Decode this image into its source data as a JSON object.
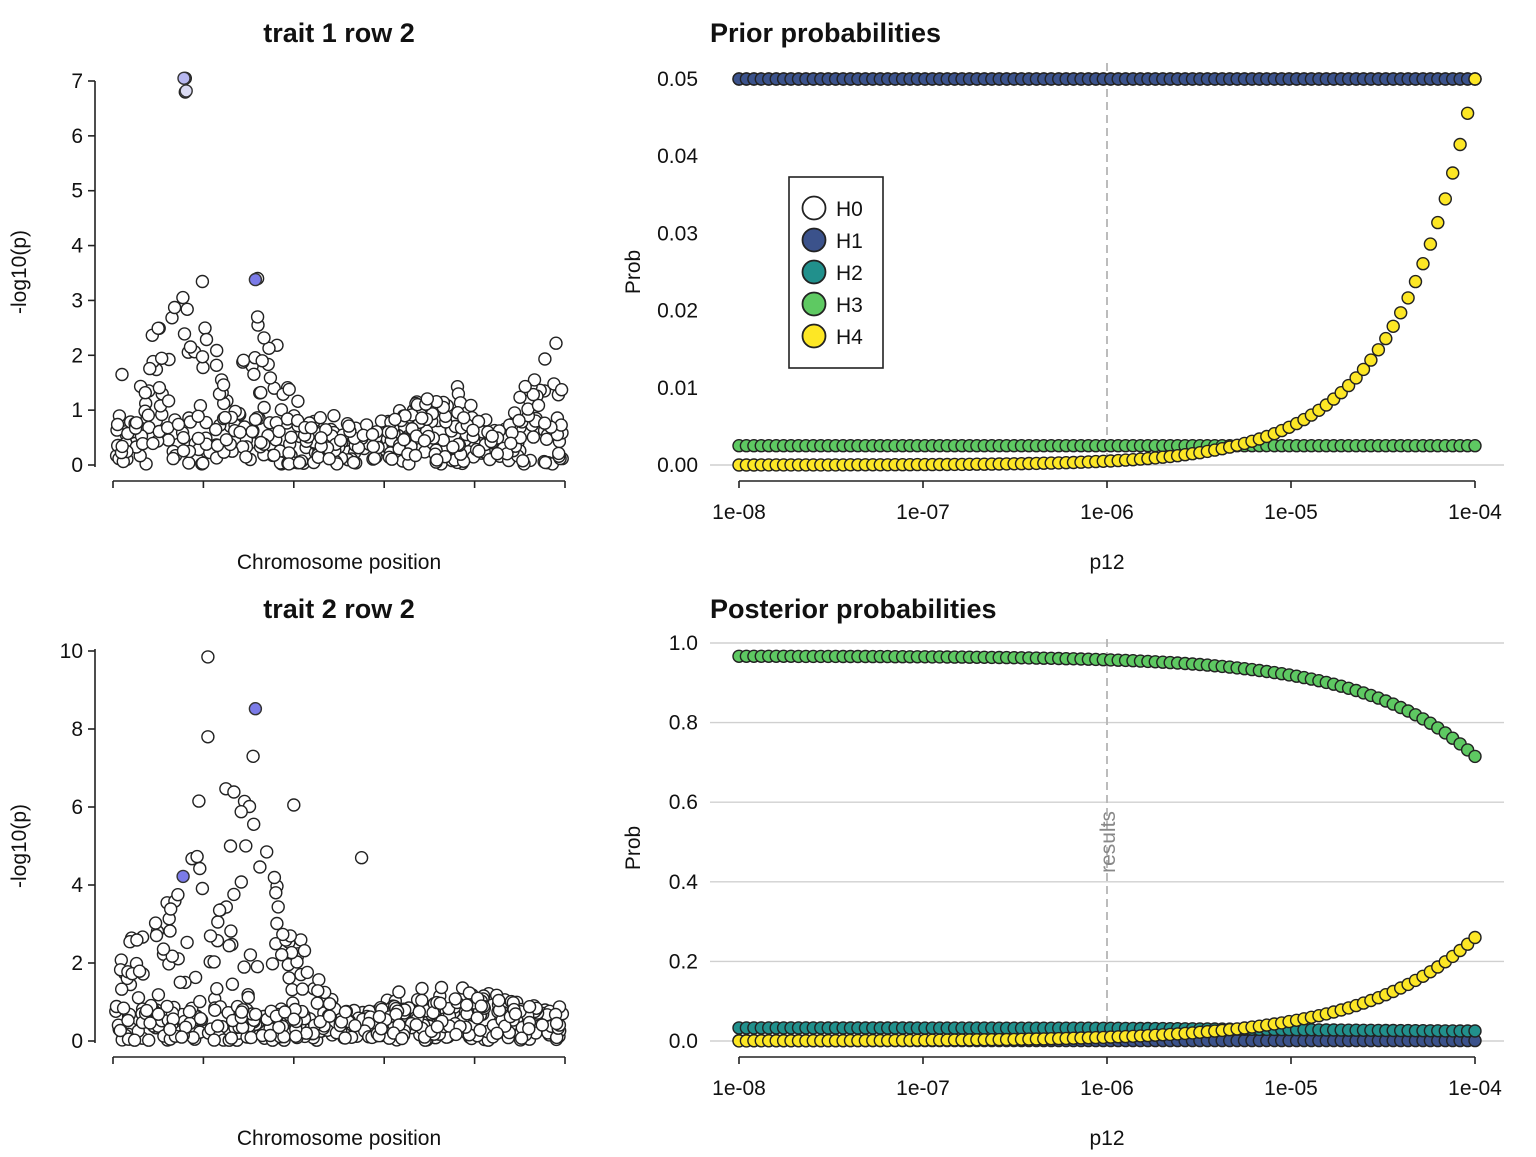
{
  "palette": {
    "H0": "#ffffff",
    "H1": "#3b528b",
    "H2": "#21908c",
    "H3": "#5ec962",
    "H4": "#fde725",
    "snp_default": "#ffffff",
    "snp_highlight": "#7b7be8",
    "snp_highlight_light": "#b8b8f0",
    "snp_highlight_pale": "#dcdcf4"
  },
  "chart_data": [
    {
      "id": "trait1",
      "type": "scatter",
      "title": "trait 1 row 2",
      "xlabel": "Chromosome position",
      "ylabel": "-log10(p)",
      "ylim": [
        0,
        7
      ],
      "yticks": [
        "0",
        "1",
        "2",
        "3",
        "4",
        "5",
        "6",
        "7"
      ],
      "x_tick_count": 6,
      "seed": 11,
      "n_background": 470,
      "peaks": [
        {
          "x": 0.16,
          "h": 3.8,
          "w": 0.09
        },
        {
          "x": 0.33,
          "h": 2.2,
          "w": 0.08
        },
        {
          "x": 0.95,
          "h": 1.8,
          "w": 0.06
        },
        {
          "x": 0.72,
          "h": 1.1,
          "w": 0.1
        }
      ],
      "points": [
        [
          0.16,
          7.05
        ],
        [
          0.16,
          6.8
        ],
        [
          0.32,
          3.4
        ],
        [
          0.32,
          2.7
        ],
        [
          0.33,
          1.9
        ],
        [
          0.02,
          1.65
        ],
        [
          0.98,
          2.22
        ]
      ],
      "highlighted": [
        {
          "x": 0.157,
          "y": 7.05,
          "color": "#b8b8f0"
        },
        {
          "x": 0.162,
          "y": 6.82,
          "color": "#dcdcf4"
        },
        {
          "x": 0.315,
          "y": 3.38,
          "color": "#7b7be8"
        }
      ]
    },
    {
      "id": "prior",
      "type": "scatter",
      "title": "Prior probabilities",
      "xlabel": "p12",
      "ylabel": "Prob",
      "x_scale": "log",
      "xlim": [
        1e-08,
        0.0001
      ],
      "xticks": [
        "1e-08",
        "1e-07",
        "1e-06",
        "1e-05",
        "1e-04"
      ],
      "ylim": [
        0,
        0.05
      ],
      "yticks": [
        "0.00",
        "0.01",
        "0.02",
        "0.03",
        "0.04",
        "0.05"
      ],
      "grid": false,
      "legend": {
        "placement": "top-left",
        "entries": [
          "H0",
          "H1",
          "H2",
          "H3",
          "H4"
        ]
      },
      "vline": {
        "x": 1e-06,
        "label": ""
      },
      "p1": 0.0001,
      "p2": 0.0001,
      "n_points": 100
    },
    {
      "id": "trait2",
      "type": "scatter",
      "title": "trait 2 row 2",
      "xlabel": "Chromosome position",
      "ylabel": "-log10(p)",
      "ylim": [
        0,
        10
      ],
      "yticks": [
        "0",
        "2",
        "4",
        "6",
        "8",
        "10"
      ],
      "x_tick_count": 6,
      "seed": 29,
      "n_background": 560,
      "peaks": [
        {
          "x": 0.25,
          "h": 6.5,
          "w": 0.16
        },
        {
          "x": 0.08,
          "h": 3.0,
          "w": 0.1
        },
        {
          "x": 0.75,
          "h": 1.0,
          "w": 0.2
        }
      ],
      "points": [
        [
          0.21,
          9.85
        ],
        [
          0.21,
          7.8
        ],
        [
          0.31,
          7.3
        ],
        [
          0.19,
          6.15
        ],
        [
          0.4,
          6.05
        ],
        [
          0.55,
          4.7
        ]
      ],
      "highlighted": [
        {
          "x": 0.315,
          "y": 8.52,
          "color": "#7b7be8"
        },
        {
          "x": 0.155,
          "y": 4.22,
          "color": "#7b7be8"
        }
      ]
    },
    {
      "id": "posterior",
      "type": "scatter",
      "title": "Posterior probabilities",
      "xlabel": "p12",
      "ylabel": "Prob",
      "x_scale": "log",
      "xlim": [
        1e-08,
        0.0001
      ],
      "xticks": [
        "1e-08",
        "1e-07",
        "1e-06",
        "1e-05",
        "1e-04"
      ],
      "ylim": [
        0,
        1
      ],
      "yticks": [
        "0.0",
        "0.2",
        "0.4",
        "0.6",
        "0.8",
        "1.0"
      ],
      "grid": true,
      "vline": {
        "x": 1e-06,
        "label": "results"
      },
      "n_points": 100,
      "series": [
        {
          "name": "H1",
          "values_at": {
            "1e-08": 0.001,
            "1e-04": 0.001
          }
        },
        {
          "name": "H2",
          "values_at": {
            "1e-08": 0.033,
            "1e-06": 0.032,
            "1e-04": 0.025
          }
        },
        {
          "name": "H3",
          "values_at": {
            "1e-08": 0.967,
            "1e-06": 0.965,
            "1e-05": 0.935,
            "1e-04": 0.715
          }
        },
        {
          "name": "H4",
          "values_at": {
            "1e-08": 0.0003,
            "1e-06": 0.003,
            "1e-05": 0.03,
            "1e-04": 0.26
          }
        }
      ]
    }
  ]
}
